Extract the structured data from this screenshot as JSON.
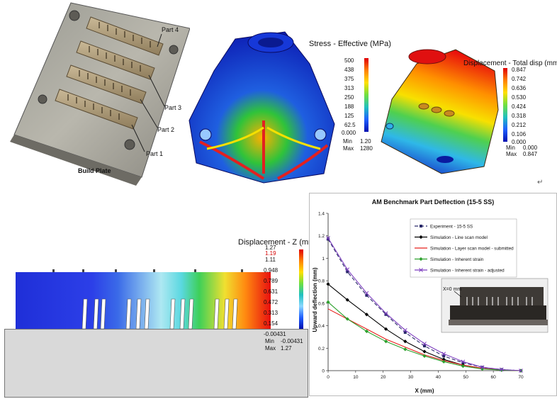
{
  "build_plate": {
    "labels": [
      "Part 4",
      "Part 3",
      "Part 2",
      "Part 1"
    ],
    "caption": "Build Plate"
  },
  "stress_legend": {
    "title": "Stress - Effective (MPa)",
    "ticks": [
      "500",
      "438",
      "375",
      "313",
      "250",
      "188",
      "125",
      "62.5",
      "0.000"
    ],
    "min_label": "Min",
    "min_value": "1.20",
    "max_label": "Max",
    "max_value": "1280"
  },
  "disp_total_legend": {
    "title": "Displacement - Total disp (mm)",
    "ticks": [
      "0.847",
      "0.742",
      "0.636",
      "0.530",
      "0.424",
      "0.318",
      "0.212",
      "0.106",
      "0.000"
    ],
    "min_label": "Min",
    "min_value": "0.000",
    "max_label": "Max",
    "max_value": "0.847"
  },
  "return_glyph": "↵",
  "disp_z_legend": {
    "title": "Displacement - Z (mm)",
    "ticks": [
      "1.27",
      "1.19",
      "1.11",
      "0.948",
      "0.789",
      "0.631",
      "0.472",
      "0.313",
      "0.154",
      "-0.00431"
    ],
    "highlight_tick": "1.19",
    "min_label": "Min",
    "min_value": "-0.00431",
    "max_label": "Max",
    "max_value": "1.27"
  },
  "colors": {
    "red_tick": "#d60000",
    "exp": "#2a2a6a",
    "line_scan": "#000000",
    "layer_scan": "#e8201c",
    "inherent": "#2ca02c",
    "inherent_adj": "#7e3fbf"
  },
  "inset": {
    "label": "X=0 mm"
  },
  "chart_data": {
    "type": "line",
    "title": "AM Benchmark Part Deflection (15-5 SS)",
    "xlabel": "X (mm)",
    "ylabel": "Upward deflection (mm)",
    "xlim": [
      0,
      70
    ],
    "ylim": [
      0,
      1.4
    ],
    "xticks": [
      0,
      10,
      20,
      30,
      40,
      50,
      60,
      70
    ],
    "yticks": [
      0,
      0.2,
      0.4,
      0.6,
      0.8,
      1.0,
      1.2,
      1.4
    ],
    "ytick_labels": [
      "0",
      "0.2",
      "0.4",
      "0.6",
      "0.8",
      "1",
      "1.2",
      "1.4"
    ],
    "grid": false,
    "legend_position": "top-right",
    "series": [
      {
        "name": "Experiment - 15-5 SS",
        "color": "#2a2a6a",
        "dash": "5,3",
        "marker": "square",
        "x": [
          0,
          7,
          14,
          21,
          28,
          35,
          42,
          49,
          56,
          63,
          70
        ],
        "y": [
          1.17,
          0.88,
          0.67,
          0.5,
          0.34,
          0.22,
          0.13,
          0.07,
          0.03,
          0.01,
          0
        ]
      },
      {
        "name": "Simulation - Line scan model",
        "color": "#000000",
        "dash": "",
        "marker": "diamond",
        "x": [
          0,
          7,
          14,
          21,
          28,
          35,
          42,
          49,
          56,
          63,
          70
        ],
        "y": [
          0.77,
          0.63,
          0.5,
          0.37,
          0.26,
          0.17,
          0.1,
          0.05,
          0.02,
          0.005,
          0
        ]
      },
      {
        "name": "Simulation - Layer scan model - submitted",
        "color": "#e8201c",
        "dash": "",
        "marker": "none",
        "x": [
          0,
          7,
          14,
          21,
          28,
          35,
          42,
          49,
          56,
          63,
          70
        ],
        "y": [
          0.55,
          0.46,
          0.37,
          0.28,
          0.21,
          0.14,
          0.09,
          0.05,
          0.02,
          0.005,
          0
        ]
      },
      {
        "name": "Simulation - Inherent strain",
        "color": "#2ca02c",
        "dash": "",
        "marker": "diamond",
        "x": [
          0,
          7,
          14,
          21,
          28,
          35,
          42,
          49,
          56,
          63,
          70
        ],
        "y": [
          0.61,
          0.46,
          0.35,
          0.26,
          0.19,
          0.13,
          0.08,
          0.04,
          0.015,
          0.005,
          0
        ]
      },
      {
        "name": "Simulation - Inherent strain - adjusted",
        "color": "#7e3fbf",
        "dash": "",
        "marker": "x",
        "x": [
          0,
          7,
          14,
          21,
          28,
          35,
          42,
          49,
          56,
          63,
          70
        ],
        "y": [
          1.18,
          0.9,
          0.69,
          0.51,
          0.36,
          0.24,
          0.15,
          0.08,
          0.03,
          0.01,
          0
        ]
      }
    ]
  }
}
